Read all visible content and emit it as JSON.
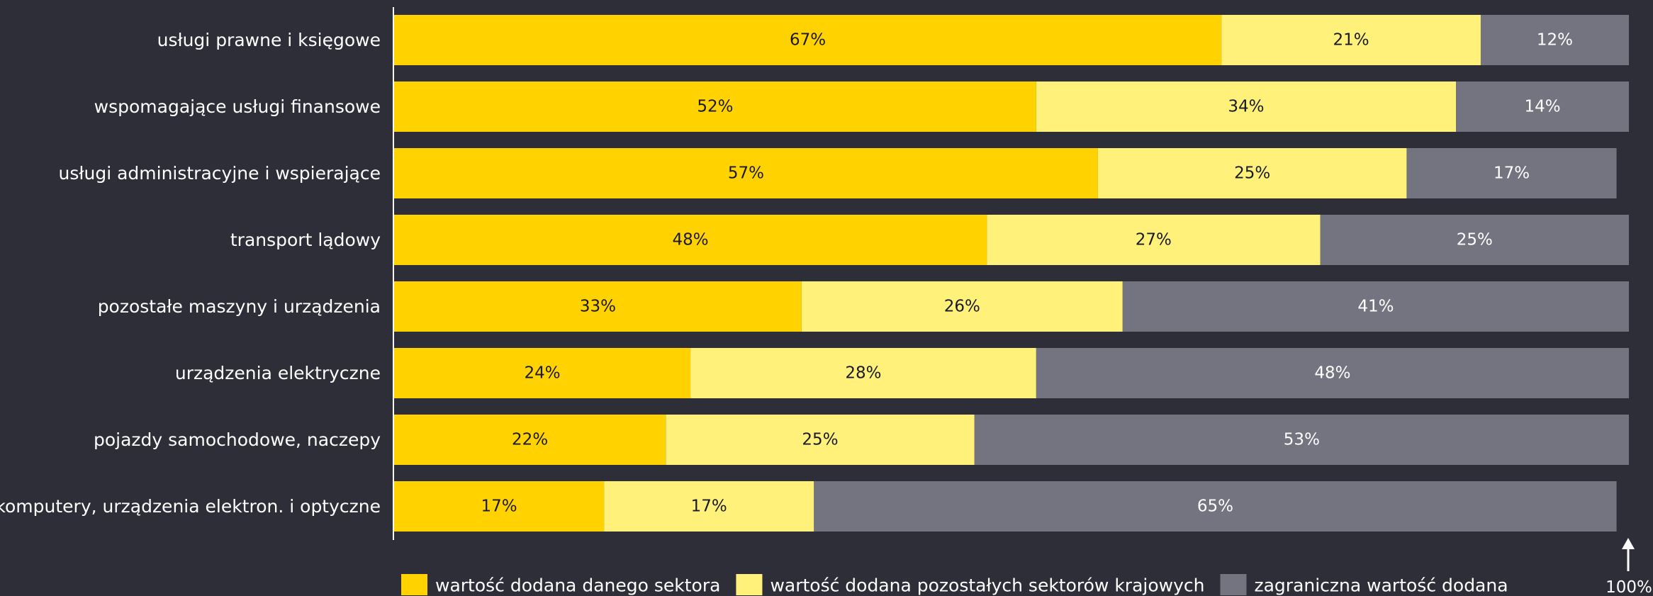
{
  "chart_data": {
    "type": "bar",
    "orientation": "horizontal",
    "stacked": true,
    "categories": [
      "usługi prawne i księgowe",
      "wspomagające usługi finansowe",
      "usługi administracyjne i wspierające",
      "transport lądowy",
      "pozostałe maszyny i urządzenia",
      "urządzenia elektryczne",
      "pojazdy samochodowe, naczepy",
      "komputery, urządzenia elektron. i optyczne"
    ],
    "series": [
      {
        "name": "wartość dodana danego sektora",
        "color": "#ffd200",
        "label_color": "#1a1a24",
        "values": [
          67,
          52,
          57,
          48,
          33,
          24,
          22,
          17
        ]
      },
      {
        "name": "wartość dodana pozostałych sektorów krajowych",
        "color": "#fff17a",
        "label_color": "#1a1a24",
        "values": [
          21,
          34,
          25,
          27,
          26,
          28,
          25,
          17
        ]
      },
      {
        "name": "zagraniczna wartość dodana",
        "color": "#747480",
        "label_color": "#ffffff",
        "values": [
          12,
          14,
          17,
          25,
          41,
          48,
          53,
          65
        ]
      }
    ],
    "value_suffix": "%",
    "xlim": [
      0,
      100
    ],
    "end_marker_label": "100%",
    "legend_position": "bottom",
    "grid": false,
    "background": "#2e2e38",
    "text_color": "#ffffff",
    "axis_color": "#ffffff"
  }
}
